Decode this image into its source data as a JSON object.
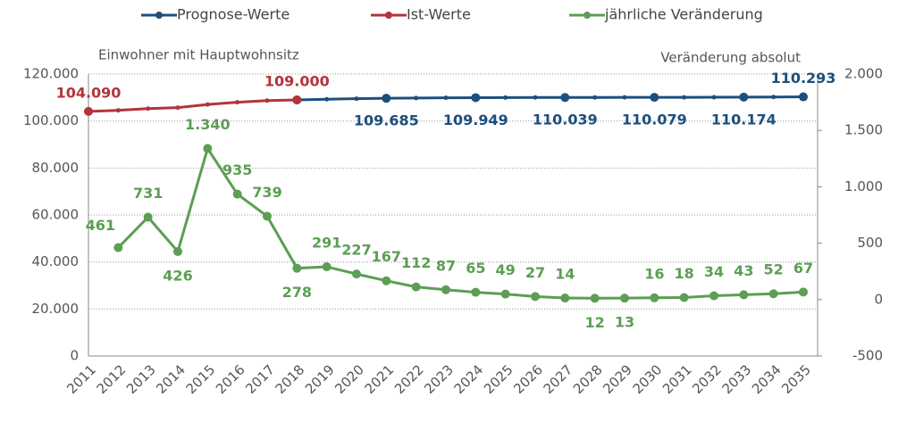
{
  "chart_data": {
    "type": "line",
    "axis_label_left": "Einwohner mit Hauptwohnsitz",
    "axis_label_right": "Veränderung absolut",
    "categories": [
      "2011",
      "2012",
      "2013",
      "2014",
      "2015",
      "2016",
      "2017",
      "2018",
      "2019",
      "2020",
      "2021",
      "2022",
      "2023",
      "2024",
      "2025",
      "2026",
      "2027",
      "2028",
      "2029",
      "2030",
      "2031",
      "2032",
      "2033",
      "2034",
      "2035"
    ],
    "ylim": [
      0,
      120000
    ],
    "yticks": [
      {
        "value": 0,
        "label": "0"
      },
      {
        "value": 20000,
        "label": "20.000"
      },
      {
        "value": 40000,
        "label": "40.000"
      },
      {
        "value": 60000,
        "label": "60.000"
      },
      {
        "value": 80000,
        "label": "80.000"
      },
      {
        "value": 100000,
        "label": "100.000"
      },
      {
        "value": 120000,
        "label": "120.000"
      }
    ],
    "y2lim": [
      -500,
      2000
    ],
    "y2ticks": [
      {
        "value": -500,
        "label": "-500"
      },
      0,
      500,
      {
        "value": 1000,
        "label": "1.000"
      },
      {
        "value": 1500,
        "label": "1.500"
      },
      {
        "value": 2000,
        "label": "2.000"
      }
    ],
    "grid": true,
    "series": [
      {
        "name": "Prognose-Werte",
        "color": "#1c4f7c",
        "values": [
          null,
          null,
          null,
          null,
          null,
          null,
          null,
          109000,
          109291,
          109518,
          109685,
          109797,
          109884,
          109949,
          109998,
          110025,
          110039,
          110051,
          110064,
          110079,
          110097,
          110131,
          110174,
          110226,
          110293
        ],
        "value_labels": [
          null,
          null,
          null,
          null,
          null,
          null,
          null,
          null,
          null,
          null,
          "109.685",
          null,
          null,
          "109.949",
          null,
          null,
          "110.039",
          null,
          null,
          "110.079",
          null,
          null,
          "110.174",
          null,
          "110.293"
        ]
      },
      {
        "name": "Ist-Werte",
        "color": "#b3343c",
        "values": [
          104090,
          104551,
          105282,
          105708,
          107048,
          107983,
          108722,
          109000,
          null,
          null,
          null,
          null,
          null,
          null,
          null,
          null,
          null,
          null,
          null,
          null,
          null,
          null,
          null,
          null,
          null
        ],
        "value_labels": [
          "104.090",
          null,
          null,
          null,
          null,
          null,
          null,
          "109.000",
          null,
          null,
          null,
          null,
          null,
          null,
          null,
          null,
          null,
          null,
          null,
          null,
          null,
          null,
          null,
          null,
          null
        ]
      },
      {
        "name": "jährliche Veränderung",
        "color": "#5c9e54",
        "axis": "y2",
        "values": [
          null,
          461,
          731,
          426,
          1340,
          935,
          739,
          278,
          291,
          227,
          167,
          112,
          87,
          65,
          49,
          27,
          14,
          12,
          13,
          16,
          18,
          34,
          43,
          52,
          67
        ],
        "value_labels": [
          null,
          "461",
          "731",
          "426",
          "1.340",
          "935",
          "739",
          "278",
          "291",
          "227",
          "167",
          "112",
          "87",
          "65",
          "49",
          "27",
          "14",
          "12",
          "13",
          "16",
          "18",
          "34",
          "43",
          "52",
          "67"
        ]
      }
    ]
  }
}
